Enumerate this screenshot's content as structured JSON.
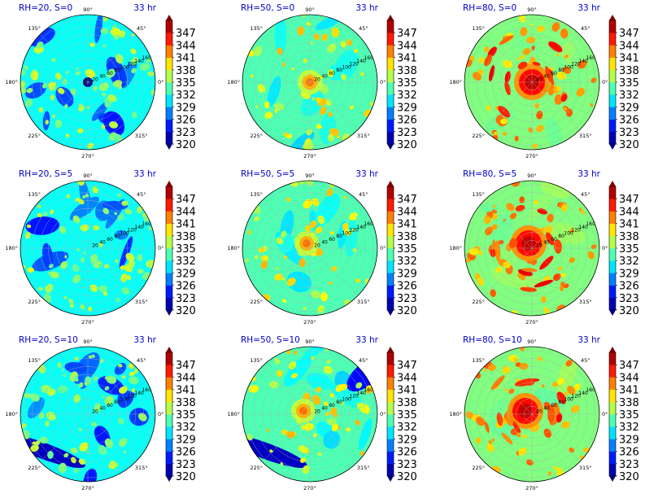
{
  "figure": {
    "title_color": "#0000cc",
    "colormap": "jet"
  },
  "chart_data": [
    {
      "type": "heatmap",
      "projection": "polar",
      "title": "RH=20, S=0",
      "time_label": "33 hr",
      "rh": 20,
      "s": 0,
      "pattern": "weak"
    },
    {
      "type": "heatmap",
      "projection": "polar",
      "title": "RH=50, S=0",
      "time_label": "33 hr",
      "rh": 50,
      "s": 0,
      "pattern": "moderate"
    },
    {
      "type": "heatmap",
      "projection": "polar",
      "title": "RH=80, S=0",
      "time_label": "33 hr",
      "rh": 80,
      "s": 0,
      "pattern": "strong"
    },
    {
      "type": "heatmap",
      "projection": "polar",
      "title": "RH=20, S=5",
      "time_label": "33 hr",
      "rh": 20,
      "s": 5,
      "pattern": "weak"
    },
    {
      "type": "heatmap",
      "projection": "polar",
      "title": "RH=50, S=5",
      "time_label": "33 hr",
      "rh": 50,
      "s": 5,
      "pattern": "moderate"
    },
    {
      "type": "heatmap",
      "projection": "polar",
      "title": "RH=80, S=5",
      "time_label": "33 hr",
      "rh": 80,
      "s": 5,
      "pattern": "strong"
    },
    {
      "type": "heatmap",
      "projection": "polar",
      "title": "RH=20, S=10",
      "time_label": "33 hr",
      "rh": 20,
      "s": 10,
      "pattern": "weak"
    },
    {
      "type": "heatmap",
      "projection": "polar",
      "title": "RH=50, S=10",
      "time_label": "33 hr",
      "rh": 50,
      "s": 10,
      "pattern": "moderate"
    },
    {
      "type": "heatmap",
      "projection": "polar",
      "title": "RH=80, S=10",
      "time_label": "33 hr",
      "rh": 80,
      "s": 10,
      "pattern": "strong"
    }
  ],
  "shared_axes": {
    "angle_ticks": [
      "90°",
      "45°",
      "0°",
      "315°",
      "270°",
      "225°",
      "180°",
      "135°"
    ],
    "radial_ticks": [
      "20",
      "40",
      "60",
      "80",
      "100",
      "120",
      "140",
      "160"
    ],
    "radial_range": [
      0,
      170
    ]
  },
  "colorbar": {
    "ticks": [
      347,
      344,
      341,
      338,
      335,
      332,
      329,
      326,
      323,
      320
    ],
    "range": [
      320,
      350
    ],
    "extend": "both"
  }
}
